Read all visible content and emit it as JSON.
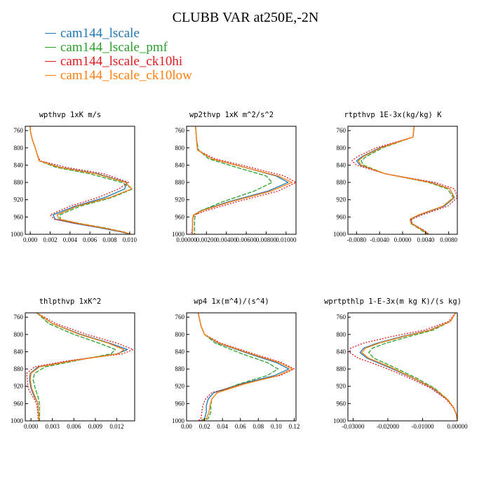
{
  "title": "CLUBB VAR at250E,-2N",
  "colors": {
    "cam144_lscale": "#1f77b4",
    "cam144_lscale_pmf": "#2ca02c",
    "cam144_lscale_ck10hi": "#e31a1c",
    "cam144_lscale_ck10low": "#ff7f0e"
  },
  "legend": [
    {
      "label": "cam144_lscale",
      "color": "#1f77b4"
    },
    {
      "label": "cam144_lscale_pmf",
      "color": "#2ca02c"
    },
    {
      "label": "cam144_lscale_ck10hi",
      "color": "#e31a1c"
    },
    {
      "label": "cam144_lscale_ck10low",
      "color": "#ff7f0e"
    }
  ],
  "chart_data": [
    {
      "type": "line",
      "title": "wpthvp  1xK m/s",
      "xlim": [
        -0.0005,
        0.0105
      ],
      "ylim": [
        1000,
        750
      ],
      "xticks": [
        0,
        0.002,
        0.004,
        0.006,
        0.008,
        0.01
      ],
      "xticklabels": [
        "0.000",
        "0.002",
        "0.004",
        "0.006",
        "0.008",
        "0.010"
      ],
      "yticks": [
        760,
        800,
        840,
        880,
        920,
        960,
        1000
      ],
      "yticklabels": [
        "760",
        "800",
        "840",
        "880",
        "920",
        "960",
        "1000"
      ],
      "p": [
        750,
        760,
        780,
        800,
        815,
        830,
        845,
        860,
        880,
        895,
        915,
        935,
        955,
        965,
        975,
        985,
        995,
        1000
      ],
      "series": [
        {
          "name": "cam144_lscale",
          "values": [
            0,
            0,
            0.0002,
            0.0005,
            0.0007,
            0.0009,
            0.003,
            0.0068,
            0.0097,
            0.0095,
            0.0075,
            0.0045,
            0.0023,
            0.0025,
            0.0045,
            0.007,
            0.0092,
            0.01
          ]
        },
        {
          "name": "cam144_lscale_pmf",
          "values": [
            0,
            0,
            0.0002,
            0.0005,
            0.0007,
            0.0009,
            0.0026,
            0.006,
            0.0092,
            0.0103,
            0.0082,
            0.005,
            0.003,
            0.003,
            0.005,
            0.0075,
            0.0095,
            0.01
          ]
        },
        {
          "name": "cam144_lscale_ck10hi",
          "values": [
            0,
            0,
            0.0002,
            0.0005,
            0.0007,
            0.001,
            0.0036,
            0.0074,
            0.0099,
            0.0089,
            0.0068,
            0.004,
            0.002,
            0.0024,
            0.0046,
            0.0072,
            0.0094,
            0.0102
          ]
        },
        {
          "name": "cam144_lscale_ck10low",
          "values": [
            0,
            0,
            0.0002,
            0.0005,
            0.0007,
            0.0009,
            0.0029,
            0.0066,
            0.0096,
            0.0102,
            0.008,
            0.0047,
            0.0027,
            0.0029,
            0.0049,
            0.0073,
            0.0094,
            0.0101
          ]
        }
      ]
    },
    {
      "type": "line",
      "title": "wp2thvp  1xK m^2/s^2",
      "xlim": [
        0,
        0.011
      ],
      "ylim": [
        1000,
        750
      ],
      "xticks": [
        0,
        0.002,
        0.004,
        0.006,
        0.008,
        0.01
      ],
      "xticklabels": [
        "0.00000",
        "0.00200",
        "0.00400",
        "0.00600",
        "0.00800",
        "0.01000"
      ],
      "yticks": [
        760,
        800,
        840,
        880,
        920,
        960,
        1000
      ],
      "yticklabels": [
        "760",
        "800",
        "840",
        "880",
        "920",
        "960",
        "1000"
      ],
      "p": [
        750,
        780,
        805,
        825,
        845,
        865,
        880,
        900,
        925,
        945,
        955,
        965,
        975,
        985,
        995,
        1000
      ],
      "series": [
        {
          "name": "cam144_lscale",
          "values": [
            0.0009,
            0.001,
            0.0011,
            0.0025,
            0.0058,
            0.009,
            0.0102,
            0.0082,
            0.0042,
            0.0015,
            0.0007,
            0.0006,
            0.0006,
            0.0006,
            0.0006,
            0.0006
          ]
        },
        {
          "name": "cam144_lscale_pmf",
          "values": [
            0.0009,
            0.001,
            0.0012,
            0.0022,
            0.005,
            0.008,
            0.0086,
            0.0068,
            0.0036,
            0.0015,
            0.0009,
            0.0008,
            0.0008,
            0.0008,
            0.0008,
            0.0008
          ]
        },
        {
          "name": "cam144_lscale_ck10hi",
          "values": [
            0.0009,
            0.001,
            0.0011,
            0.0028,
            0.0064,
            0.0098,
            0.011,
            0.0092,
            0.005,
            0.002,
            0.0008,
            0.0006,
            0.0006,
            0.0006,
            0.0005,
            0.0005
          ]
        },
        {
          "name": "cam144_lscale_ck10low",
          "values": [
            0.0009,
            0.001,
            0.0011,
            0.0025,
            0.0058,
            0.0092,
            0.0106,
            0.0085,
            0.0044,
            0.0016,
            0.0007,
            0.0006,
            0.0006,
            0.0006,
            0.0006,
            0.0006
          ]
        }
      ]
    },
    {
      "type": "line",
      "title": "rtpthvp  1E-3x(kg/kg) K",
      "xlim": [
        -0.0095,
        0.0095
      ],
      "ylim": [
        1000,
        750
      ],
      "xticks": [
        -0.008,
        -0.004,
        0,
        0.004,
        0.008
      ],
      "xticklabels": [
        "-0.0080",
        "-0.0040",
        "0.0000",
        "0.0040",
        "0.0080"
      ],
      "yticks": [
        760,
        800,
        840,
        880,
        920,
        960,
        1000
      ],
      "yticklabels": [
        "760",
        "800",
        "840",
        "880",
        "920",
        "960",
        "1000"
      ],
      "p": [
        750,
        775,
        800,
        820,
        830,
        840,
        860,
        880,
        895,
        915,
        935,
        955,
        965,
        975,
        990,
        1000
      ],
      "series": [
        {
          "name": "cam144_lscale",
          "values": [
            0.002,
            0.0018,
            -0.004,
            -0.007,
            -0.008,
            -0.0074,
            -0.003,
            0.005,
            0.0082,
            0.009,
            0.0072,
            0.003,
            0.0014,
            0.0016,
            0.0035,
            0.0045
          ]
        },
        {
          "name": "cam144_lscale_pmf",
          "values": [
            0.002,
            0.0018,
            -0.0035,
            -0.0063,
            -0.0072,
            -0.0068,
            -0.003,
            0.0045,
            0.0078,
            0.0088,
            0.007,
            0.0028,
            0.0013,
            0.0014,
            0.0032,
            0.0042
          ]
        },
        {
          "name": "cam144_lscale_ck10hi",
          "values": [
            0.002,
            0.0018,
            -0.0046,
            -0.0078,
            -0.0088,
            -0.008,
            -0.003,
            0.0056,
            0.009,
            0.0095,
            0.0078,
            0.0034,
            0.0016,
            0.0016,
            0.0036,
            0.0046
          ]
        },
        {
          "name": "cam144_lscale_ck10low",
          "values": [
            0.002,
            0.0018,
            -0.0038,
            -0.0068,
            -0.0077,
            -0.0072,
            -0.003,
            0.0048,
            0.0082,
            0.0089,
            0.007,
            0.0028,
            0.0013,
            0.0015,
            0.0034,
            0.0044
          ]
        }
      ]
    },
    {
      "type": "line",
      "title": "thlpthvp  1xK^2",
      "xlim": [
        -0.0008,
        0.0145
      ],
      "ylim": [
        1000,
        750
      ],
      "xticks": [
        0,
        0.003,
        0.006,
        0.009,
        0.012
      ],
      "xticklabels": [
        "0.000",
        "0.003",
        "0.006",
        "0.009",
        "0.012"
      ],
      "yticks": [
        760,
        800,
        840,
        880,
        920,
        960,
        1000
      ],
      "yticklabels": [
        "760",
        "800",
        "840",
        "880",
        "920",
        "960",
        "1000"
      ],
      "p": [
        750,
        775,
        800,
        820,
        835,
        845,
        860,
        875,
        890,
        905,
        925,
        945,
        960,
        975,
        990,
        1000
      ],
      "series": [
        {
          "name": "cam144_lscale",
          "values": [
            0.0008,
            0.003,
            0.007,
            0.011,
            0.0135,
            0.012,
            0.006,
            0.001,
            -0.0001,
            -0.0002,
            0.0,
            0.0005,
            0.001,
            0.001,
            0.0011,
            0.0011
          ]
        },
        {
          "name": "cam144_lscale_pmf",
          "values": [
            0.0008,
            0.0025,
            0.006,
            0.0095,
            0.0118,
            0.0112,
            0.0065,
            0.002,
            0.0005,
            0.0003,
            0.0006,
            0.001,
            0.0012,
            0.0012,
            0.0012,
            0.0012
          ]
        },
        {
          "name": "cam144_lscale_ck10hi",
          "values": [
            0.0008,
            0.0035,
            0.0078,
            0.012,
            0.0143,
            0.0128,
            0.0055,
            0.0005,
            -0.0006,
            -0.0005,
            -0.0004,
            0.0003,
            0.0008,
            0.0009,
            0.001,
            0.001
          ]
        },
        {
          "name": "cam144_lscale_ck10low",
          "values": [
            0.0008,
            0.003,
            0.0068,
            0.0108,
            0.013,
            0.0122,
            0.0062,
            0.0012,
            0.0,
            -0.0001,
            0.0001,
            0.0006,
            0.001,
            0.001,
            0.0011,
            0.0011
          ]
        }
      ]
    },
    {
      "type": "line",
      "title": "wp4  1x(m^4)/(s^4)",
      "xlim": [
        0,
        0.122
      ],
      "ylim": [
        1000,
        750
      ],
      "xticks": [
        0,
        0.02,
        0.04,
        0.06,
        0.08,
        0.1,
        0.12
      ],
      "xticklabels": [
        "0.00",
        "0.02",
        "0.04",
        "0.06",
        "0.08",
        "0.10",
        "0.12"
      ],
      "yticks": [
        760,
        800,
        840,
        880,
        920,
        960,
        1000
      ],
      "yticklabels": [
        "760",
        "800",
        "840",
        "880",
        "920",
        "960",
        "1000"
      ],
      "p": [
        750,
        780,
        800,
        820,
        845,
        865,
        880,
        895,
        915,
        935,
        950,
        965,
        980,
        995,
        1000
      ],
      "series": [
        {
          "name": "cam144_lscale",
          "values": [
            0.013,
            0.016,
            0.02,
            0.035,
            0.07,
            0.1,
            0.114,
            0.098,
            0.06,
            0.03,
            0.024,
            0.022,
            0.022,
            0.02,
            0.015
          ]
        },
        {
          "name": "cam144_lscale_pmf",
          "values": [
            0.013,
            0.016,
            0.02,
            0.032,
            0.062,
            0.09,
            0.102,
            0.09,
            0.058,
            0.034,
            0.028,
            0.027,
            0.027,
            0.024,
            0.018
          ]
        },
        {
          "name": "cam144_lscale_ck10hi",
          "values": [
            0.013,
            0.016,
            0.02,
            0.038,
            0.075,
            0.106,
            0.12,
            0.104,
            0.062,
            0.028,
            0.021,
            0.018,
            0.017,
            0.016,
            0.013
          ]
        },
        {
          "name": "cam144_lscale_ck10low",
          "values": [
            0.013,
            0.016,
            0.02,
            0.036,
            0.072,
            0.103,
            0.118,
            0.102,
            0.064,
            0.034,
            0.028,
            0.026,
            0.025,
            0.022,
            0.016
          ]
        }
      ]
    },
    {
      "type": "line",
      "title": "wprtpthlp  1-E-3x(m kg K)/(s kg)",
      "xlim": [
        -0.0315,
        0
      ],
      "ylim": [
        1000,
        750
      ],
      "xticks": [
        -0.03,
        -0.02,
        -0.01,
        0
      ],
      "xticklabels": [
        "-0.03000",
        "-0.02000",
        "-0.01000",
        "0.00000"
      ],
      "yticks": [
        760,
        800,
        840,
        880,
        920,
        960,
        1000
      ],
      "yticklabels": [
        "760",
        "800",
        "840",
        "880",
        "920",
        "960",
        "1000"
      ],
      "p": [
        750,
        770,
        790,
        805,
        820,
        832,
        842,
        855,
        875,
        900,
        925,
        950,
        970,
        985,
        1000
      ],
      "series": [
        {
          "name": "cam144_lscale",
          "values": [
            -0.0005,
            -0.002,
            -0.008,
            -0.016,
            -0.023,
            -0.027,
            -0.028,
            -0.026,
            -0.02,
            -0.013,
            -0.007,
            -0.003,
            -0.001,
            -0.0003,
            0.0
          ]
        },
        {
          "name": "cam144_lscale_pmf",
          "values": [
            -0.0005,
            -0.002,
            -0.007,
            -0.014,
            -0.0205,
            -0.0245,
            -0.0255,
            -0.024,
            -0.0185,
            -0.012,
            -0.0065,
            -0.0028,
            -0.001,
            -0.0003,
            0.0
          ]
        },
        {
          "name": "cam144_lscale_ck10hi",
          "values": [
            -0.0005,
            -0.0025,
            -0.0095,
            -0.019,
            -0.027,
            -0.0308,
            -0.031,
            -0.0285,
            -0.0215,
            -0.014,
            -0.0075,
            -0.0032,
            -0.0011,
            -0.0003,
            0.0
          ]
        },
        {
          "name": "cam144_lscale_ck10low",
          "values": [
            -0.0005,
            -0.002,
            -0.0078,
            -0.0155,
            -0.0225,
            -0.0265,
            -0.0275,
            -0.0255,
            -0.0195,
            -0.0128,
            -0.0068,
            -0.0029,
            -0.001,
            -0.0003,
            0.0
          ]
        }
      ]
    }
  ]
}
